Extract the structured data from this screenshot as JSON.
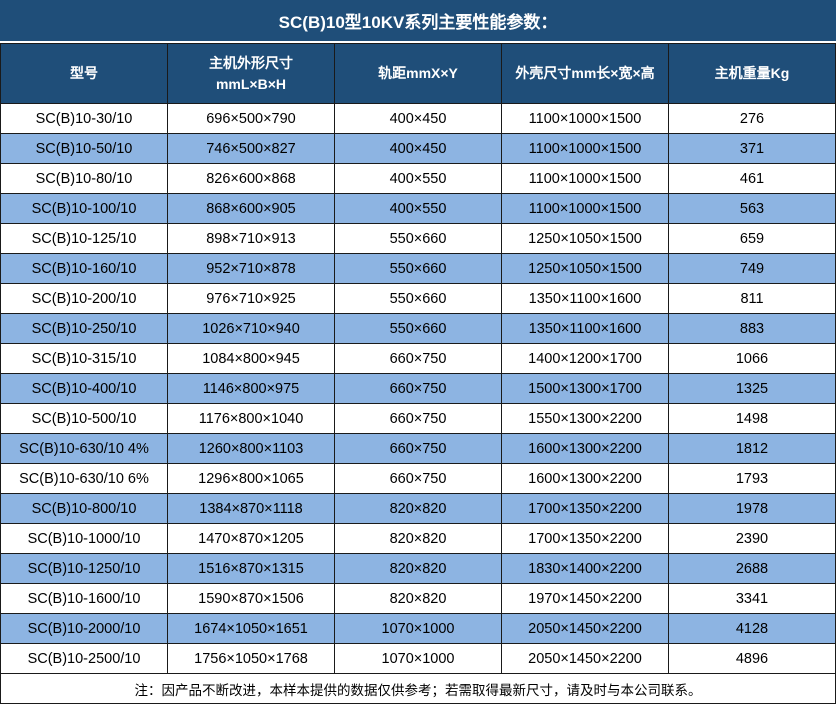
{
  "title": "SC(B)10型10KV系列主要性能参数：",
  "note": "注：因产品不断改进，本样本提供的数据仅供参考；若需取得最新尺寸，请及时与本公司联系。",
  "colors": {
    "header_bg": "#1F4E79",
    "stripe_bg": "#8DB4E2",
    "border": "#1a1a1a",
    "header_text": "#FFFFFF",
    "text": "#000000"
  },
  "table": {
    "columns": [
      "型号",
      "主机外形尺寸\nmmL×B×H",
      "轨距mmX×Y",
      "外壳尺寸mm长×宽×高",
      "主机重量Kg"
    ],
    "rows": [
      [
        "SC(B)10-30/10",
        "696×500×790",
        "400×450",
        "1100×1000×1500",
        "276"
      ],
      [
        "SC(B)10-50/10",
        "746×500×827",
        "400×450",
        "1100×1000×1500",
        "371"
      ],
      [
        "SC(B)10-80/10",
        "826×600×868",
        "400×550",
        "1100×1000×1500",
        "461"
      ],
      [
        "SC(B)10-100/10",
        "868×600×905",
        "400×550",
        "1100×1000×1500",
        "563"
      ],
      [
        "SC(B)10-125/10",
        "898×710×913",
        "550×660",
        "1250×1050×1500",
        "659"
      ],
      [
        "SC(B)10-160/10",
        "952×710×878",
        "550×660",
        "1250×1050×1500",
        "749"
      ],
      [
        "SC(B)10-200/10",
        "976×710×925",
        "550×660",
        "1350×1100×1600",
        "811"
      ],
      [
        "SC(B)10-250/10",
        "1026×710×940",
        "550×660",
        "1350×1100×1600",
        "883"
      ],
      [
        "SC(B)10-315/10",
        "1084×800×945",
        "660×750",
        "1400×1200×1700",
        "1066"
      ],
      [
        "SC(B)10-400/10",
        "1146×800×975",
        "660×750",
        "1500×1300×1700",
        "1325"
      ],
      [
        "SC(B)10-500/10",
        "1176×800×1040",
        "660×750",
        "1550×1300×2200",
        "1498"
      ],
      [
        "SC(B)10-630/10 4%",
        "1260×800×1103",
        "660×750",
        "1600×1300×2200",
        "1812"
      ],
      [
        "SC(B)10-630/10 6%",
        "1296×800×1065",
        "660×750",
        "1600×1300×2200",
        "1793"
      ],
      [
        "SC(B)10-800/10",
        "1384×870×1118",
        "820×820",
        "1700×1350×2200",
        "1978"
      ],
      [
        "SC(B)10-1000/10",
        "1470×870×1205",
        "820×820",
        "1700×1350×2200",
        "2390"
      ],
      [
        "SC(B)10-1250/10",
        "1516×870×1315",
        "820×820",
        "1830×1400×2200",
        "2688"
      ],
      [
        "SC(B)10-1600/10",
        "1590×870×1506",
        "820×820",
        "1970×1450×2200",
        "3341"
      ],
      [
        "SC(B)10-2000/10",
        "1674×1050×1651",
        "1070×1000",
        "2050×1450×2200",
        "4128"
      ],
      [
        "SC(B)10-2500/10",
        "1756×1050×1768",
        "1070×1000",
        "2050×1450×2200",
        "4896"
      ]
    ]
  }
}
